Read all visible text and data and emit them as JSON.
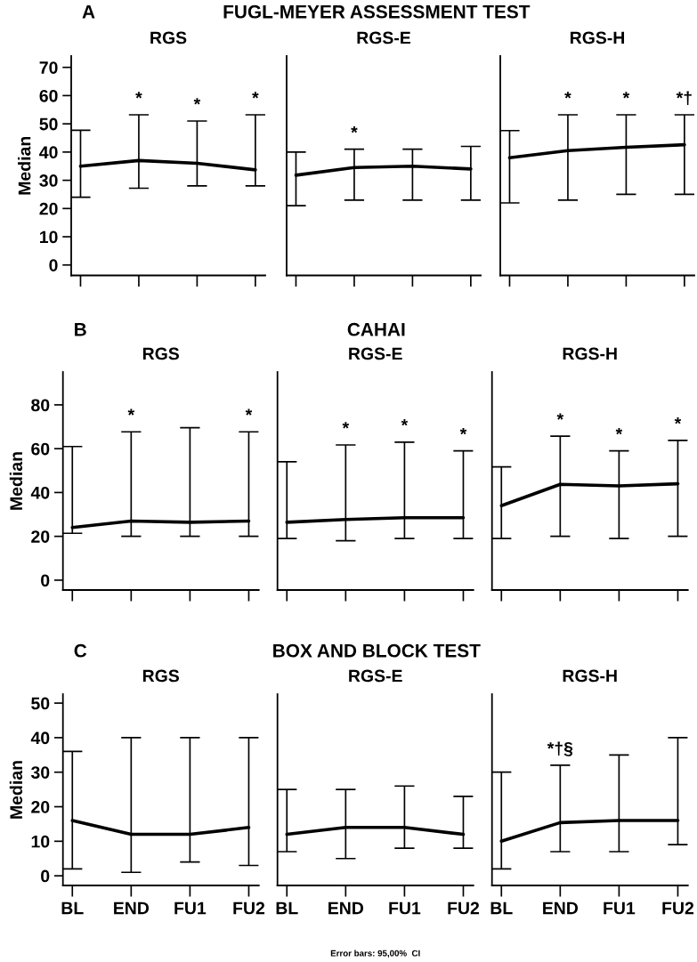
{
  "chart_data": [
    {
      "type": "line",
      "title": "RGS",
      "ylabel": "Median",
      "categories": [
        "BL",
        "END",
        "FU1",
        "FU2"
      ],
      "ylim": [
        -3.7,
        74
      ],
      "yticks": [
        0,
        10,
        20,
        30,
        40,
        50,
        60,
        70
      ],
      "tick_labels": "y",
      "grid": false,
      "legend": false,
      "marker": "none",
      "line_style": "solid",
      "series": [
        {
          "color": "#000000",
          "values": [
            35,
            37,
            36,
            33.7
          ],
          "errors": [
            [
              24,
              47.7
            ],
            [
              27.2,
              53.2
            ],
            [
              28,
              51
            ],
            [
              28,
              53.2
            ]
          ]
        }
      ],
      "annotations": [
        "A",
        "FUGL-MEYER ASSESSMENT TEST",
        {
          "text": "*",
          "x": "END",
          "y": 53.2
        },
        {
          "text": "*",
          "x": "FU1",
          "y": 51
        },
        {
          "text": "*",
          "x": "FU2",
          "y": 53.2
        }
      ]
    },
    {
      "type": "line",
      "title": "RGS-E",
      "categories": [
        "BL",
        "END",
        "FU1",
        "FU2"
      ],
      "ylim": [
        -3.7,
        74
      ],
      "tick_labels": false,
      "grid": false,
      "legend": false,
      "marker": "none",
      "line_style": "solid",
      "series": [
        {
          "color": "#000000",
          "values": [
            31.8,
            34.5,
            35,
            34
          ],
          "errors": [
            [
              21,
              40
            ],
            [
              23,
              41
            ],
            [
              23,
              41
            ],
            [
              23,
              42
            ]
          ]
        }
      ],
      "annotations": [
        {
          "text": "*",
          "x": "END",
          "y": 41
        }
      ]
    },
    {
      "type": "line",
      "title": "RGS-H",
      "categories": [
        "BL",
        "END",
        "FU1",
        "FU2"
      ],
      "ylim": [
        -3.7,
        74
      ],
      "tick_labels": false,
      "grid": false,
      "legend": false,
      "marker": "none",
      "line_style": "solid",
      "series": [
        {
          "color": "#000000",
          "values": [
            38,
            40.5,
            41.7,
            42.6
          ],
          "errors": [
            [
              22,
              47.6
            ],
            [
              23,
              53.2
            ],
            [
              25,
              53.2
            ],
            [
              25,
              53.2
            ]
          ]
        }
      ],
      "annotations": [
        {
          "text": "*",
          "x": "END",
          "y": 53.2
        },
        {
          "text": "*",
          "x": "FU1",
          "y": 53.2
        },
        {
          "text": "*†",
          "x": "FU2",
          "y": 53.2
        }
      ]
    },
    {
      "type": "line",
      "title": "RGS",
      "ylabel": "Median",
      "categories": [
        "BL",
        "END",
        "FU1",
        "FU2"
      ],
      "ylim": [
        -4.5,
        95
      ],
      "yticks": [
        0,
        20,
        40,
        60,
        80
      ],
      "tick_labels": "y",
      "grid": false,
      "legend": false,
      "marker": "none",
      "line_style": "solid",
      "series": [
        {
          "color": "#000000",
          "values": [
            24,
            27,
            26.4,
            27
          ],
          "errors": [
            [
              21.4,
              61
            ],
            [
              20,
              67.7
            ],
            [
              20,
              69.6
            ],
            [
              20,
              67.7
            ]
          ]
        }
      ],
      "annotations": [
        "B",
        "CAHAI",
        {
          "text": "*",
          "x": "END",
          "y": 67.7
        },
        {
          "text": "*",
          "x": "FU2",
          "y": 67.7
        }
      ]
    },
    {
      "type": "line",
      "title": "RGS-E",
      "categories": [
        "BL",
        "END",
        "FU1",
        "FU2"
      ],
      "ylim": [
        -4.5,
        95
      ],
      "tick_labels": false,
      "grid": false,
      "legend": false,
      "marker": "none",
      "line_style": "solid",
      "series": [
        {
          "color": "#000000",
          "values": [
            26.4,
            27.7,
            28.5,
            28.5
          ],
          "errors": [
            [
              19,
              54
            ],
            [
              18,
              61.7
            ],
            [
              19,
              63
            ],
            [
              19,
              59
            ]
          ]
        }
      ],
      "annotations": [
        {
          "text": "*",
          "x": "END",
          "y": 61.7
        },
        {
          "text": "*",
          "x": "FU1",
          "y": 63
        },
        {
          "text": "*",
          "x": "FU2",
          "y": 59
        }
      ]
    },
    {
      "type": "line",
      "title": "RGS-H",
      "categories": [
        "BL",
        "END",
        "FU1",
        "FU2"
      ],
      "ylim": [
        -4.5,
        95
      ],
      "tick_labels": false,
      "grid": false,
      "legend": false,
      "marker": "none",
      "line_style": "solid",
      "series": [
        {
          "color": "#000000",
          "values": [
            34,
            43.7,
            43,
            44
          ],
          "errors": [
            [
              19,
              51.7
            ],
            [
              20,
              65.7
            ],
            [
              19,
              59
            ],
            [
              20,
              63.8
            ]
          ]
        }
      ],
      "annotations": [
        {
          "text": "*",
          "x": "END",
          "y": 65.7
        },
        {
          "text": "*",
          "x": "FU1",
          "y": 59
        },
        {
          "text": "*",
          "x": "FU2",
          "y": 63.8
        }
      ]
    },
    {
      "type": "line",
      "title": "RGS",
      "ylabel": "Median",
      "categories": [
        "BL",
        "END",
        "FU1",
        "FU2"
      ],
      "ylim": [
        -2.8,
        52.6
      ],
      "yticks": [
        0,
        10,
        20,
        30,
        40,
        50
      ],
      "grid": false,
      "legend": false,
      "marker": "none",
      "line_style": "solid",
      "series": [
        {
          "color": "#000000",
          "values": [
            16,
            12,
            12,
            14
          ],
          "errors": [
            [
              2,
              36
            ],
            [
              1,
              40
            ],
            [
              4,
              40
            ],
            [
              3,
              40
            ]
          ]
        }
      ],
      "annotations": [
        "C",
        "BOX AND BLOCK TEST"
      ]
    },
    {
      "type": "line",
      "title": "RGS-E",
      "categories": [
        "BL",
        "END",
        "FU1",
        "FU2"
      ],
      "ylim": [
        -2.8,
        52.6
      ],
      "tick_labels": "x",
      "grid": false,
      "legend": false,
      "marker": "none",
      "line_style": "solid",
      "series": [
        {
          "color": "#000000",
          "values": [
            12,
            14,
            14,
            12
          ],
          "errors": [
            [
              7,
              25
            ],
            [
              5,
              25
            ],
            [
              8,
              26
            ],
            [
              8,
              23
            ]
          ]
        }
      ],
      "annotations": [
        "Error bars: 95,00%  CI"
      ]
    },
    {
      "type": "line",
      "title": "RGS-H",
      "categories": [
        "BL",
        "END",
        "FU1",
        "FU2"
      ],
      "ylim": [
        -2.8,
        52.6
      ],
      "tick_labels": "x",
      "grid": false,
      "legend": false,
      "marker": "none",
      "line_style": "solid",
      "series": [
        {
          "color": "#000000",
          "values": [
            10,
            15.4,
            16,
            16
          ],
          "errors": [
            [
              2,
              30
            ],
            [
              7,
              32
            ],
            [
              7,
              35
            ],
            [
              9,
              40
            ]
          ]
        }
      ],
      "annotations": [
        {
          "text": "*†§",
          "x": "END",
          "y": 32
        }
      ]
    }
  ]
}
